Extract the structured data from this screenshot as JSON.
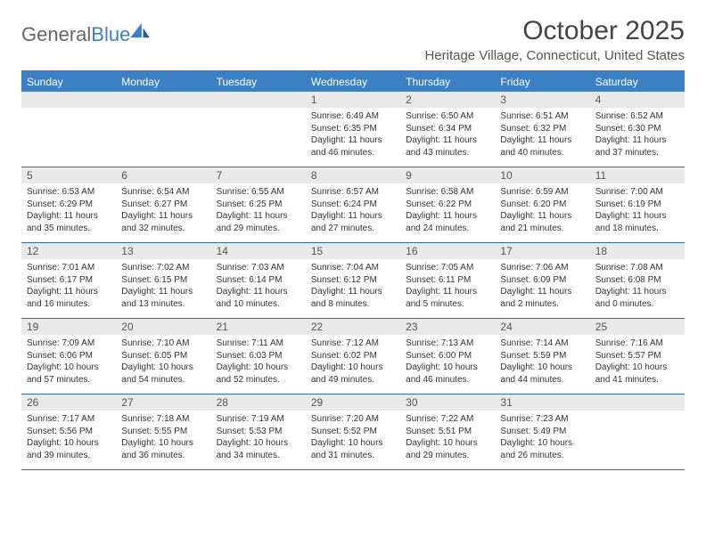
{
  "brand": {
    "part1": "General",
    "part2": "Blue"
  },
  "title": "October 2025",
  "location": "Heritage Village, Connecticut, United States",
  "colors": {
    "header_bg": "#3b7fc4",
    "header_border": "#2e6da4",
    "daynum_bg": "#e9e9e9",
    "text": "#333333",
    "page_bg": "#ffffff"
  },
  "dayNames": [
    "Sunday",
    "Monday",
    "Tuesday",
    "Wednesday",
    "Thursday",
    "Friday",
    "Saturday"
  ],
  "weeks": [
    [
      {
        "empty": true
      },
      {
        "empty": true
      },
      {
        "empty": true
      },
      {
        "day": "1",
        "sunrise": "Sunrise: 6:49 AM",
        "sunset": "Sunset: 6:35 PM",
        "daylight": "Daylight: 11 hours and 46 minutes."
      },
      {
        "day": "2",
        "sunrise": "Sunrise: 6:50 AM",
        "sunset": "Sunset: 6:34 PM",
        "daylight": "Daylight: 11 hours and 43 minutes."
      },
      {
        "day": "3",
        "sunrise": "Sunrise: 6:51 AM",
        "sunset": "Sunset: 6:32 PM",
        "daylight": "Daylight: 11 hours and 40 minutes."
      },
      {
        "day": "4",
        "sunrise": "Sunrise: 6:52 AM",
        "sunset": "Sunset: 6:30 PM",
        "daylight": "Daylight: 11 hours and 37 minutes."
      }
    ],
    [
      {
        "day": "5",
        "sunrise": "Sunrise: 6:53 AM",
        "sunset": "Sunset: 6:29 PM",
        "daylight": "Daylight: 11 hours and 35 minutes."
      },
      {
        "day": "6",
        "sunrise": "Sunrise: 6:54 AM",
        "sunset": "Sunset: 6:27 PM",
        "daylight": "Daylight: 11 hours and 32 minutes."
      },
      {
        "day": "7",
        "sunrise": "Sunrise: 6:55 AM",
        "sunset": "Sunset: 6:25 PM",
        "daylight": "Daylight: 11 hours and 29 minutes."
      },
      {
        "day": "8",
        "sunrise": "Sunrise: 6:57 AM",
        "sunset": "Sunset: 6:24 PM",
        "daylight": "Daylight: 11 hours and 27 minutes."
      },
      {
        "day": "9",
        "sunrise": "Sunrise: 6:58 AM",
        "sunset": "Sunset: 6:22 PM",
        "daylight": "Daylight: 11 hours and 24 minutes."
      },
      {
        "day": "10",
        "sunrise": "Sunrise: 6:59 AM",
        "sunset": "Sunset: 6:20 PM",
        "daylight": "Daylight: 11 hours and 21 minutes."
      },
      {
        "day": "11",
        "sunrise": "Sunrise: 7:00 AM",
        "sunset": "Sunset: 6:19 PM",
        "daylight": "Daylight: 11 hours and 18 minutes."
      }
    ],
    [
      {
        "day": "12",
        "sunrise": "Sunrise: 7:01 AM",
        "sunset": "Sunset: 6:17 PM",
        "daylight": "Daylight: 11 hours and 16 minutes."
      },
      {
        "day": "13",
        "sunrise": "Sunrise: 7:02 AM",
        "sunset": "Sunset: 6:15 PM",
        "daylight": "Daylight: 11 hours and 13 minutes."
      },
      {
        "day": "14",
        "sunrise": "Sunrise: 7:03 AM",
        "sunset": "Sunset: 6:14 PM",
        "daylight": "Daylight: 11 hours and 10 minutes."
      },
      {
        "day": "15",
        "sunrise": "Sunrise: 7:04 AM",
        "sunset": "Sunset: 6:12 PM",
        "daylight": "Daylight: 11 hours and 8 minutes."
      },
      {
        "day": "16",
        "sunrise": "Sunrise: 7:05 AM",
        "sunset": "Sunset: 6:11 PM",
        "daylight": "Daylight: 11 hours and 5 minutes."
      },
      {
        "day": "17",
        "sunrise": "Sunrise: 7:06 AM",
        "sunset": "Sunset: 6:09 PM",
        "daylight": "Daylight: 11 hours and 2 minutes."
      },
      {
        "day": "18",
        "sunrise": "Sunrise: 7:08 AM",
        "sunset": "Sunset: 6:08 PM",
        "daylight": "Daylight: 11 hours and 0 minutes."
      }
    ],
    [
      {
        "day": "19",
        "sunrise": "Sunrise: 7:09 AM",
        "sunset": "Sunset: 6:06 PM",
        "daylight": "Daylight: 10 hours and 57 minutes."
      },
      {
        "day": "20",
        "sunrise": "Sunrise: 7:10 AM",
        "sunset": "Sunset: 6:05 PM",
        "daylight": "Daylight: 10 hours and 54 minutes."
      },
      {
        "day": "21",
        "sunrise": "Sunrise: 7:11 AM",
        "sunset": "Sunset: 6:03 PM",
        "daylight": "Daylight: 10 hours and 52 minutes."
      },
      {
        "day": "22",
        "sunrise": "Sunrise: 7:12 AM",
        "sunset": "Sunset: 6:02 PM",
        "daylight": "Daylight: 10 hours and 49 minutes."
      },
      {
        "day": "23",
        "sunrise": "Sunrise: 7:13 AM",
        "sunset": "Sunset: 6:00 PM",
        "daylight": "Daylight: 10 hours and 46 minutes."
      },
      {
        "day": "24",
        "sunrise": "Sunrise: 7:14 AM",
        "sunset": "Sunset: 5:59 PM",
        "daylight": "Daylight: 10 hours and 44 minutes."
      },
      {
        "day": "25",
        "sunrise": "Sunrise: 7:16 AM",
        "sunset": "Sunset: 5:57 PM",
        "daylight": "Daylight: 10 hours and 41 minutes."
      }
    ],
    [
      {
        "day": "26",
        "sunrise": "Sunrise: 7:17 AM",
        "sunset": "Sunset: 5:56 PM",
        "daylight": "Daylight: 10 hours and 39 minutes."
      },
      {
        "day": "27",
        "sunrise": "Sunrise: 7:18 AM",
        "sunset": "Sunset: 5:55 PM",
        "daylight": "Daylight: 10 hours and 36 minutes."
      },
      {
        "day": "28",
        "sunrise": "Sunrise: 7:19 AM",
        "sunset": "Sunset: 5:53 PM",
        "daylight": "Daylight: 10 hours and 34 minutes."
      },
      {
        "day": "29",
        "sunrise": "Sunrise: 7:20 AM",
        "sunset": "Sunset: 5:52 PM",
        "daylight": "Daylight: 10 hours and 31 minutes."
      },
      {
        "day": "30",
        "sunrise": "Sunrise: 7:22 AM",
        "sunset": "Sunset: 5:51 PM",
        "daylight": "Daylight: 10 hours and 29 minutes."
      },
      {
        "day": "31",
        "sunrise": "Sunrise: 7:23 AM",
        "sunset": "Sunset: 5:49 PM",
        "daylight": "Daylight: 10 hours and 26 minutes."
      },
      {
        "empty": true
      }
    ]
  ]
}
